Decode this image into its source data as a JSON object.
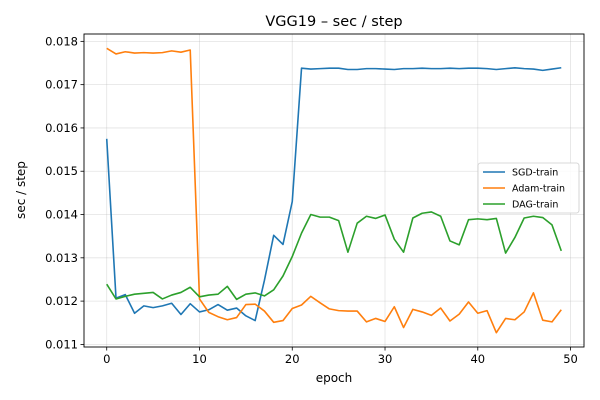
{
  "chart_data": {
    "type": "line",
    "title": "VGG19 – sec / step",
    "xlabel": "epoch",
    "ylabel": "sec / step",
    "xlim": [
      -2.45,
      51.45
    ],
    "ylim": [
      0.01094,
      0.01817
    ],
    "xticks": [
      0,
      10,
      20,
      30,
      40,
      50
    ],
    "yticks": [
      0.011,
      0.012,
      0.013,
      0.014,
      0.015,
      0.016,
      0.017,
      0.018
    ],
    "grid": true,
    "legend": "center-right",
    "x": [
      0,
      1,
      2,
      3,
      4,
      5,
      6,
      7,
      8,
      9,
      10,
      11,
      12,
      13,
      14,
      15,
      16,
      17,
      18,
      19,
      20,
      21,
      22,
      23,
      24,
      25,
      26,
      27,
      28,
      29,
      30,
      31,
      32,
      33,
      34,
      35,
      36,
      37,
      38,
      39,
      40,
      41,
      42,
      43,
      44,
      45,
      46,
      47,
      48,
      49
    ],
    "series": [
      {
        "name": "SGD-train",
        "color": "#1f77b4",
        "values": [
          0.01575,
          0.01207,
          0.01215,
          0.01172,
          0.01189,
          0.01185,
          0.01189,
          0.01195,
          0.01169,
          0.01194,
          0.01175,
          0.0118,
          0.01192,
          0.01179,
          0.01184,
          0.01166,
          0.01155,
          0.01248,
          0.01352,
          0.01331,
          0.0143,
          0.01738,
          0.01736,
          0.01737,
          0.01738,
          0.01738,
          0.01735,
          0.01735,
          0.01737,
          0.01737,
          0.01736,
          0.01735,
          0.01737,
          0.01737,
          0.01738,
          0.01737,
          0.01737,
          0.01738,
          0.01737,
          0.01738,
          0.01738,
          0.01737,
          0.01735,
          0.01737,
          0.01739,
          0.01737,
          0.01736,
          0.01733,
          0.01736,
          0.01739
        ]
      },
      {
        "name": "Adam-train",
        "color": "#ff7f0e",
        "values": [
          0.01784,
          0.01771,
          0.01776,
          0.01773,
          0.01774,
          0.01773,
          0.01774,
          0.01778,
          0.01775,
          0.0178,
          0.01205,
          0.01174,
          0.01164,
          0.01157,
          0.01162,
          0.01192,
          0.01193,
          0.01177,
          0.01151,
          0.01155,
          0.01183,
          0.01191,
          0.01211,
          0.01196,
          0.01182,
          0.01178,
          0.01177,
          0.01177,
          0.01152,
          0.0116,
          0.01153,
          0.01187,
          0.01139,
          0.01181,
          0.01175,
          0.01167,
          0.01184,
          0.01154,
          0.0117,
          0.01198,
          0.01172,
          0.01178,
          0.01127,
          0.0116,
          0.01157,
          0.01175,
          0.01219,
          0.01156,
          0.01152,
          0.0118
        ]
      },
      {
        "name": "DAG-train",
        "color": "#2ca02c",
        "values": [
          0.01239,
          0.01205,
          0.01211,
          0.01216,
          0.01218,
          0.0122,
          0.01205,
          0.01214,
          0.0122,
          0.01232,
          0.0121,
          0.01214,
          0.01216,
          0.01234,
          0.01204,
          0.01216,
          0.01219,
          0.01212,
          0.01226,
          0.01258,
          0.01303,
          0.01357,
          0.014,
          0.01394,
          0.01394,
          0.01386,
          0.01313,
          0.0138,
          0.01396,
          0.01391,
          0.01399,
          0.01343,
          0.01313,
          0.01392,
          0.01403,
          0.01406,
          0.01396,
          0.01339,
          0.0133,
          0.01388,
          0.0139,
          0.01388,
          0.01391,
          0.01311,
          0.01347,
          0.01392,
          0.01396,
          0.01393,
          0.01376,
          0.01316
        ]
      }
    ]
  }
}
